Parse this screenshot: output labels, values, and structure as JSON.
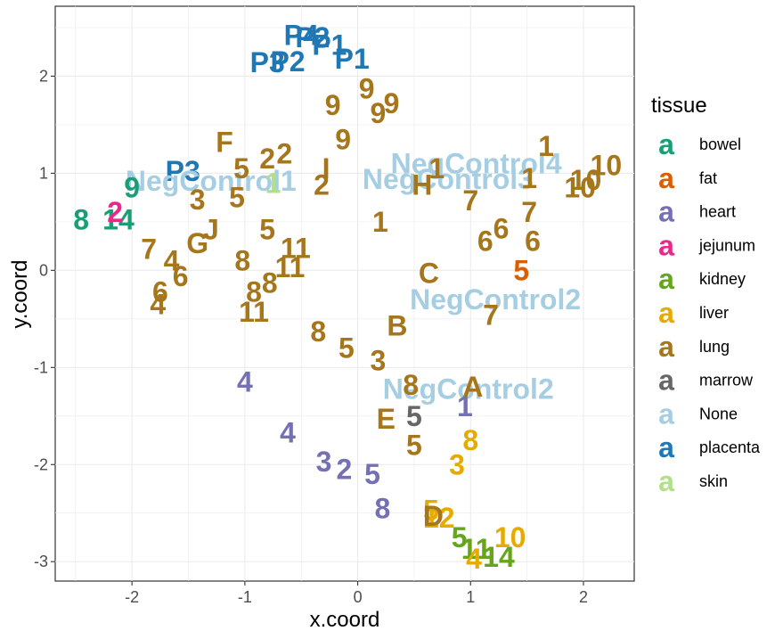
{
  "chart_data": {
    "type": "scatter",
    "xlabel": "x.coord",
    "ylabel": "y.coord",
    "xlim": [
      -2.68,
      2.45
    ],
    "ylim": [
      -3.2,
      2.72
    ],
    "x_ticks": [
      -2,
      -1,
      0,
      1,
      2
    ],
    "y_ticks": [
      -3,
      -2,
      -1,
      0,
      1,
      2
    ],
    "grid": true,
    "legend": {
      "title": "tissue",
      "position": "right",
      "key_glyph": "a",
      "entries": [
        {
          "name": "bowel",
          "color": "#1b9e77"
        },
        {
          "name": "fat",
          "color": "#d95f02"
        },
        {
          "name": "heart",
          "color": "#7570b3"
        },
        {
          "name": "jejunum",
          "color": "#e7298a"
        },
        {
          "name": "kidney",
          "color": "#66a61e"
        },
        {
          "name": "liver",
          "color": "#e6ab02"
        },
        {
          "name": "lung",
          "color": "#a6761d"
        },
        {
          "name": "marrow",
          "color": "#666666"
        },
        {
          "name": "None",
          "color": "#a6cee3"
        },
        {
          "name": "placenta",
          "color": "#1f78b4"
        },
        {
          "name": "skin",
          "color": "#b2df8a"
        }
      ]
    },
    "points": [
      {
        "label": "P4",
        "x": -0.5,
        "y": 2.42,
        "tissue": "placenta"
      },
      {
        "label": "P2",
        "x": -0.4,
        "y": 2.4,
        "tissue": "placenta"
      },
      {
        "label": "P1",
        "x": -0.25,
        "y": 2.32,
        "tissue": "placenta"
      },
      {
        "label": "P3",
        "x": -0.8,
        "y": 2.14,
        "tissue": "placenta"
      },
      {
        "label": "P2",
        "x": -0.62,
        "y": 2.15,
        "tissue": "placenta"
      },
      {
        "label": "P1",
        "x": -0.05,
        "y": 2.18,
        "tissue": "placenta"
      },
      {
        "label": "P3",
        "x": -1.55,
        "y": 1.02,
        "tissue": "placenta"
      },
      {
        "label": "NegControl1",
        "x": -1.3,
        "y": 0.92,
        "tissue": "None"
      },
      {
        "label": "NegControl3",
        "x": 0.8,
        "y": 0.94,
        "tissue": "None"
      },
      {
        "label": "NegControl4",
        "x": 1.05,
        "y": 1.1,
        "tissue": "None"
      },
      {
        "label": "NegControl2",
        "x": 1.22,
        "y": -0.3,
        "tissue": "None"
      },
      {
        "label": "NegControl2",
        "x": 0.98,
        "y": -1.22,
        "tissue": "None"
      },
      {
        "label": "1",
        "x": -0.75,
        "y": 0.9,
        "tissue": "skin"
      },
      {
        "label": "9",
        "x": -2.0,
        "y": 0.85,
        "tissue": "bowel"
      },
      {
        "label": "8",
        "x": -2.45,
        "y": 0.52,
        "tissue": "bowel"
      },
      {
        "label": "14",
        "x": -2.12,
        "y": 0.52,
        "tissue": "bowel"
      },
      {
        "label": "2",
        "x": -2.15,
        "y": 0.6,
        "tissue": "jejunum"
      },
      {
        "label": "5",
        "x": 1.45,
        "y": 0.0,
        "tissue": "fat"
      },
      {
        "label": "4",
        "x": -1.0,
        "y": -1.15,
        "tissue": "heart"
      },
      {
        "label": "4",
        "x": -0.62,
        "y": -1.67,
        "tissue": "heart"
      },
      {
        "label": "3",
        "x": -0.3,
        "y": -1.97,
        "tissue": "heart"
      },
      {
        "label": "2",
        "x": -0.12,
        "y": -2.05,
        "tissue": "heart"
      },
      {
        "label": "5",
        "x": 0.13,
        "y": -2.1,
        "tissue": "heart"
      },
      {
        "label": "8",
        "x": 0.22,
        "y": -2.45,
        "tissue": "heart"
      },
      {
        "label": "1",
        "x": 0.95,
        "y": -1.4,
        "tissue": "heart"
      },
      {
        "label": "5",
        "x": 0.9,
        "y": -2.75,
        "tissue": "kidney"
      },
      {
        "label": "11",
        "x": 1.05,
        "y": -2.87,
        "tissue": "kidney"
      },
      {
        "label": "14",
        "x": 1.25,
        "y": -2.95,
        "tissue": "kidney"
      },
      {
        "label": "8",
        "x": 1.0,
        "y": -1.75,
        "tissue": "liver"
      },
      {
        "label": "3",
        "x": 0.88,
        "y": -2.0,
        "tissue": "liver"
      },
      {
        "label": "5",
        "x": 0.65,
        "y": -2.47,
        "tissue": "liver"
      },
      {
        "label": "12",
        "x": 0.72,
        "y": -2.55,
        "tissue": "liver"
      },
      {
        "label": "10",
        "x": 1.35,
        "y": -2.75,
        "tissue": "liver"
      },
      {
        "label": "4",
        "x": 1.03,
        "y": -2.97,
        "tissue": "liver"
      },
      {
        "label": "5",
        "x": 0.5,
        "y": -1.5,
        "tissue": "marrow"
      },
      {
        "label": "9",
        "x": 0.08,
        "y": 1.87,
        "tissue": "lung"
      },
      {
        "label": "9",
        "x": -0.22,
        "y": 1.7,
        "tissue": "lung"
      },
      {
        "label": "9",
        "x": 0.18,
        "y": 1.62,
        "tissue": "lung"
      },
      {
        "label": "9",
        "x": 0.3,
        "y": 1.72,
        "tissue": "lung"
      },
      {
        "label": "9",
        "x": -0.13,
        "y": 1.35,
        "tissue": "lung"
      },
      {
        "label": "F",
        "x": -1.18,
        "y": 1.32,
        "tissue": "lung"
      },
      {
        "label": "2",
        "x": -0.8,
        "y": 1.15,
        "tissue": "lung"
      },
      {
        "label": "2",
        "x": -0.65,
        "y": 1.2,
        "tissue": "lung"
      },
      {
        "label": "I",
        "x": -0.28,
        "y": 1.05,
        "tissue": "lung"
      },
      {
        "label": "2",
        "x": -0.32,
        "y": 0.88,
        "tissue": "lung"
      },
      {
        "label": "5",
        "x": -1.03,
        "y": 1.05,
        "tissue": "lung"
      },
      {
        "label": "5",
        "x": -1.07,
        "y": 0.75,
        "tissue": "lung"
      },
      {
        "label": "3",
        "x": -1.42,
        "y": 0.73,
        "tissue": "lung"
      },
      {
        "label": "J",
        "x": -1.3,
        "y": 0.42,
        "tissue": "lung"
      },
      {
        "label": "G",
        "x": -1.42,
        "y": 0.28,
        "tissue": "lung"
      },
      {
        "label": "5",
        "x": -0.8,
        "y": 0.42,
        "tissue": "lung"
      },
      {
        "label": "11",
        "x": -0.55,
        "y": 0.23,
        "tissue": "lung"
      },
      {
        "label": "11",
        "x": -0.6,
        "y": 0.03,
        "tissue": "lung"
      },
      {
        "label": "8",
        "x": -1.02,
        "y": 0.1,
        "tissue": "lung"
      },
      {
        "label": "8",
        "x": -0.78,
        "y": -0.13,
        "tissue": "lung"
      },
      {
        "label": "8",
        "x": -0.92,
        "y": -0.22,
        "tissue": "lung"
      },
      {
        "label": "11",
        "x": -0.92,
        "y": -0.43,
        "tissue": "lung"
      },
      {
        "label": "7",
        "x": -1.85,
        "y": 0.22,
        "tissue": "lung"
      },
      {
        "label": "4",
        "x": -1.65,
        "y": 0.1,
        "tissue": "lung"
      },
      {
        "label": "6",
        "x": -1.57,
        "y": -0.06,
        "tissue": "lung"
      },
      {
        "label": "6",
        "x": -1.75,
        "y": -0.22,
        "tissue": "lung"
      },
      {
        "label": "4",
        "x": -1.77,
        "y": -0.35,
        "tissue": "lung"
      },
      {
        "label": "1",
        "x": 0.2,
        "y": 0.5,
        "tissue": "lung"
      },
      {
        "label": "H",
        "x": 0.57,
        "y": 0.88,
        "tissue": "lung"
      },
      {
        "label": "1",
        "x": 0.7,
        "y": 1.05,
        "tissue": "lung"
      },
      {
        "label": "7",
        "x": 1.0,
        "y": 0.72,
        "tissue": "lung"
      },
      {
        "label": "C",
        "x": 0.63,
        "y": -0.03,
        "tissue": "lung"
      },
      {
        "label": "6",
        "x": 1.13,
        "y": 0.3,
        "tissue": "lung"
      },
      {
        "label": "6",
        "x": 1.27,
        "y": 0.43,
        "tissue": "lung"
      },
      {
        "label": "6",
        "x": 1.55,
        "y": 0.3,
        "tissue": "lung"
      },
      {
        "label": "7",
        "x": 1.52,
        "y": 0.6,
        "tissue": "lung"
      },
      {
        "label": "1",
        "x": 1.67,
        "y": 1.28,
        "tissue": "lung"
      },
      {
        "label": "1",
        "x": 1.52,
        "y": 0.95,
        "tissue": "lung"
      },
      {
        "label": "10",
        "x": 2.2,
        "y": 1.08,
        "tissue": "lung"
      },
      {
        "label": "10",
        "x": 2.02,
        "y": 0.93,
        "tissue": "lung"
      },
      {
        "label": "10",
        "x": 1.97,
        "y": 0.85,
        "tissue": "lung"
      },
      {
        "label": "7",
        "x": 1.18,
        "y": -0.46,
        "tissue": "lung"
      },
      {
        "label": "B",
        "x": 0.35,
        "y": -0.57,
        "tissue": "lung"
      },
      {
        "label": "8",
        "x": -0.35,
        "y": -0.63,
        "tissue": "lung"
      },
      {
        "label": "5",
        "x": -0.1,
        "y": -0.8,
        "tissue": "lung"
      },
      {
        "label": "3",
        "x": 0.18,
        "y": -0.93,
        "tissue": "lung"
      },
      {
        "label": "8",
        "x": 0.47,
        "y": -1.18,
        "tissue": "lung"
      },
      {
        "label": "A",
        "x": 1.02,
        "y": -1.2,
        "tissue": "lung"
      },
      {
        "label": "E",
        "x": 0.25,
        "y": -1.53,
        "tissue": "lung"
      },
      {
        "label": "5",
        "x": 0.5,
        "y": -1.8,
        "tissue": "lung"
      },
      {
        "label": "D",
        "x": 0.67,
        "y": -2.53,
        "tissue": "lung"
      }
    ]
  }
}
